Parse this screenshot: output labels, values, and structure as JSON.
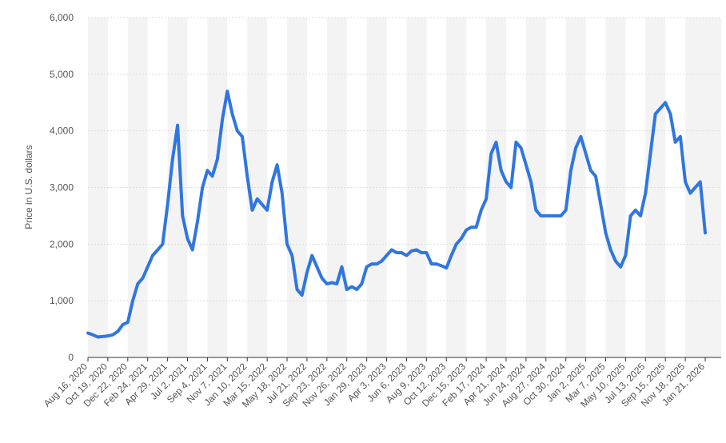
{
  "chart_data": {
    "type": "line",
    "y_label": "Price in U.S. dollars",
    "categories": [
      "Aug 16, 2020",
      null,
      null,
      null,
      "Oct 19, 2020",
      null,
      null,
      null,
      "Dec 22, 2020",
      null,
      null,
      null,
      "Feb 24, 2021",
      null,
      null,
      null,
      "Apr 29, 2021",
      null,
      null,
      null,
      "Jul 2, 2021",
      null,
      null,
      null,
      "Sep 4, 2021",
      null,
      null,
      null,
      "Nov 7, 2021",
      null,
      null,
      null,
      "Jan 10, 2022",
      null,
      null,
      null,
      "Mar 15, 2022",
      null,
      null,
      null,
      "May 18, 2022",
      null,
      null,
      null,
      "Jul 21, 2022",
      null,
      null,
      null,
      "Sep 23, 2022",
      null,
      null,
      null,
      "Nov 26, 2022",
      null,
      null,
      null,
      "Jan 29, 2023",
      null,
      null,
      null,
      "Apr 3, 2023",
      null,
      null,
      null,
      "Jun 6, 2023",
      null,
      null,
      null,
      "Aug 9, 2023",
      null,
      null,
      null,
      "Oct 12, 2023",
      null,
      null,
      null,
      "Dec 15, 2023",
      null,
      null,
      null,
      "Feb 17, 2024",
      null,
      null,
      null,
      "Apr 21, 2024",
      null,
      null,
      null,
      "Jun 24, 2024",
      null,
      null,
      null,
      "Aug 27, 2024",
      null,
      null,
      null,
      "Oct 30, 2024",
      null,
      null,
      null,
      "Jan 2, 2025",
      null,
      null,
      null,
      "Mar 7, 2025",
      null,
      null,
      null,
      "May 10, 2025",
      null,
      null,
      null,
      "Jul 13, 2025",
      null,
      null,
      null,
      "Sep 15, 2025",
      null,
      null,
      null,
      "Nov 18, 2025",
      null,
      null,
      null,
      "Jan 21, 2026"
    ],
    "values": [
      430,
      400,
      360,
      370,
      380,
      400,
      460,
      580,
      620,
      1000,
      1300,
      1400,
      1600,
      1800,
      1900,
      2000,
      2700,
      3500,
      4100,
      2500,
      2100,
      1900,
      2400,
      3000,
      3300,
      3200,
      3500,
      4200,
      4700,
      4300,
      4000,
      3900,
      3200,
      2600,
      2800,
      2700,
      2600,
      3100,
      3400,
      2900,
      2000,
      1800,
      1200,
      1100,
      1500,
      1800,
      1600,
      1400,
      1300,
      1320,
      1300,
      1600,
      1200,
      1250,
      1200,
      1300,
      1600,
      1650,
      1650,
      1700,
      1800,
      1900,
      1850,
      1850,
      1800,
      1880,
      1900,
      1850,
      1850,
      1650,
      1650,
      1620,
      1580,
      1800,
      2000,
      2100,
      2250,
      2300,
      2300,
      2600,
      2800,
      3600,
      3800,
      3300,
      3100,
      3000,
      3800,
      3700,
      3400,
      3100,
      2600,
      2500,
      2500,
      2500,
      2500,
      2500,
      2600,
      3300,
      3700,
      3900,
      3600,
      3300,
      3200,
      2700,
      2200,
      1900,
      1700,
      1600,
      1800,
      2500,
      2600,
      2500,
      2900,
      3600,
      4300,
      4400,
      4500,
      4300,
      3800,
      3900,
      3100,
      2900,
      3000,
      3100,
      2200
    ],
    "color": "#2f76e0",
    "ylim": [
      0,
      6000
    ],
    "yticks": [
      0,
      {
        "value": 1000,
        "label": "1,000"
      },
      {
        "value": 2000,
        "label": "2,000"
      },
      {
        "value": 3000,
        "label": "3,000"
      },
      {
        "value": 4000,
        "label": "4,000"
      },
      {
        "value": 5000,
        "label": "5,000"
      },
      {
        "value": 6000,
        "label": "6,000"
      }
    ],
    "grid": true
  }
}
